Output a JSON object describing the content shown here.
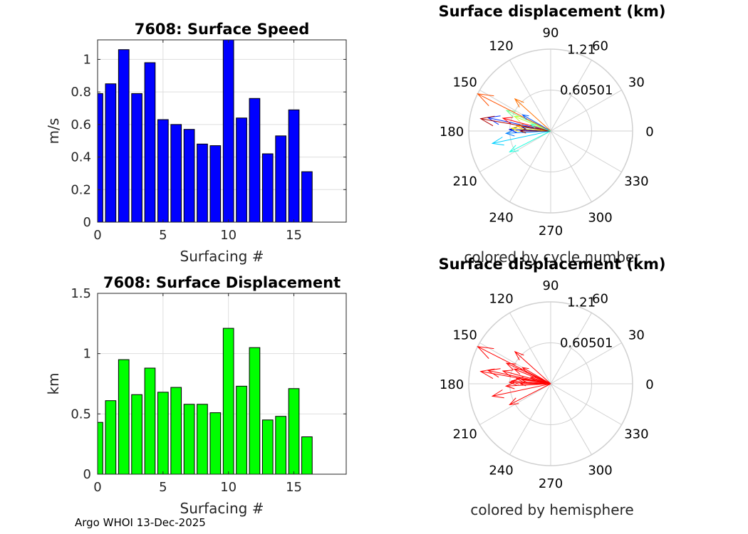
{
  "figure": {
    "footer": "Argo WHOI 13-Dec-2025"
  },
  "chart_data": [
    {
      "type": "bar",
      "title": "7608: Surface Speed",
      "xlabel": "Surfacing #",
      "ylabel": "m/s",
      "xlim": [
        0,
        19
      ],
      "ylim": [
        0,
        1.12
      ],
      "xticks": [
        0,
        5,
        10,
        15
      ],
      "yticks": [
        0,
        0.2,
        0.4,
        0.6,
        0.8,
        1
      ],
      "grid": true,
      "bar_color": "#0000ff",
      "categories": [
        0,
        1,
        2,
        3,
        4,
        5,
        6,
        7,
        8,
        9,
        10,
        11,
        12,
        13,
        14,
        15,
        16
      ],
      "values": [
        0.79,
        0.85,
        1.06,
        0.79,
        0.98,
        0.63,
        0.6,
        0.57,
        0.48,
        0.47,
        1.13,
        0.64,
        0.76,
        0.42,
        0.53,
        0.69,
        0.31
      ]
    },
    {
      "type": "bar",
      "title": "7608: Surface Displacement",
      "xlabel": "Surfacing #",
      "ylabel": "km",
      "xlim": [
        0,
        19
      ],
      "ylim": [
        0,
        1.5
      ],
      "xticks": [
        0,
        5,
        10,
        15
      ],
      "yticks": [
        0,
        0.5,
        1,
        1.5
      ],
      "grid": true,
      "bar_color": "#00ff00",
      "categories": [
        0,
        1,
        2,
        3,
        4,
        5,
        6,
        7,
        8,
        9,
        10,
        11,
        12,
        13,
        14,
        15,
        16
      ],
      "values": [
        0.43,
        0.61,
        0.95,
        0.66,
        0.88,
        0.68,
        0.72,
        0.58,
        0.58,
        0.51,
        1.21,
        0.73,
        1.05,
        0.45,
        0.48,
        0.71,
        0.31
      ]
    },
    {
      "type": "polar",
      "title": "Surface displacement (km)",
      "caption": "colored by cycle number",
      "rmax": 1.21,
      "rticks": [
        0.60501,
        1.21
      ],
      "rtick_labels": [
        "0.60501",
        "1.21"
      ],
      "angle_ticks": [
        0,
        30,
        60,
        90,
        120,
        150,
        180,
        210,
        240,
        270,
        300,
        330
      ],
      "angle_labels": [
        "0",
        "30",
        "60",
        "90",
        "120",
        "150",
        "180",
        "210",
        "240",
        "270",
        "300",
        "330"
      ],
      "color_mode": "cycle",
      "colors": [
        "#00008f",
        "#0000df",
        "#0030ff",
        "#0080ff",
        "#00d0ff",
        "#20ffdf",
        "#70ff8f",
        "#bfff40",
        "#ffef00",
        "#ff9f00",
        "#ff5000",
        "#ff0000",
        "#af0000",
        "#800000",
        "#0060ff",
        "#ff7000",
        "#40ffbf"
      ],
      "vectors": [
        {
          "angle": 172,
          "r": 0.43
        },
        {
          "angle": 178,
          "r": 0.61
        },
        {
          "angle": 168,
          "r": 0.95
        },
        {
          "angle": 183,
          "r": 0.66
        },
        {
          "angle": 192,
          "r": 0.88
        },
        {
          "angle": 207,
          "r": 0.68
        },
        {
          "angle": 155,
          "r": 0.72
        },
        {
          "angle": 158,
          "r": 0.58
        },
        {
          "angle": 176,
          "r": 0.58
        },
        {
          "angle": 171,
          "r": 0.51
        },
        {
          "angle": 153,
          "r": 1.21
        },
        {
          "angle": 165,
          "r": 0.73
        },
        {
          "angle": 170,
          "r": 1.05
        },
        {
          "angle": 180,
          "r": 0.45
        },
        {
          "angle": 150,
          "r": 0.48
        },
        {
          "angle": 138,
          "r": 0.71
        },
        {
          "angle": 162,
          "r": 0.31
        }
      ]
    },
    {
      "type": "polar",
      "title": "Surface displacement (km)",
      "caption": "colored by hemisphere",
      "rmax": 1.21,
      "rticks": [
        0.60501,
        1.21
      ],
      "rtick_labels": [
        "0.60501",
        "1.21"
      ],
      "angle_ticks": [
        0,
        30,
        60,
        90,
        120,
        150,
        180,
        210,
        240,
        270,
        300,
        330
      ],
      "angle_labels": [
        "0",
        "30",
        "60",
        "90",
        "120",
        "150",
        "180",
        "210",
        "240",
        "270",
        "300",
        "330"
      ],
      "color_mode": "single",
      "color": "#ff0000",
      "vectors": [
        {
          "angle": 172,
          "r": 0.43
        },
        {
          "angle": 178,
          "r": 0.61
        },
        {
          "angle": 168,
          "r": 0.95
        },
        {
          "angle": 183,
          "r": 0.66
        },
        {
          "angle": 192,
          "r": 0.88
        },
        {
          "angle": 207,
          "r": 0.68
        },
        {
          "angle": 155,
          "r": 0.72
        },
        {
          "angle": 158,
          "r": 0.58
        },
        {
          "angle": 176,
          "r": 0.58
        },
        {
          "angle": 171,
          "r": 0.51
        },
        {
          "angle": 153,
          "r": 1.21
        },
        {
          "angle": 165,
          "r": 0.73
        },
        {
          "angle": 170,
          "r": 1.05
        },
        {
          "angle": 180,
          "r": 0.45
        },
        {
          "angle": 150,
          "r": 0.48
        },
        {
          "angle": 138,
          "r": 0.71
        },
        {
          "angle": 162,
          "r": 0.31
        }
      ]
    }
  ]
}
